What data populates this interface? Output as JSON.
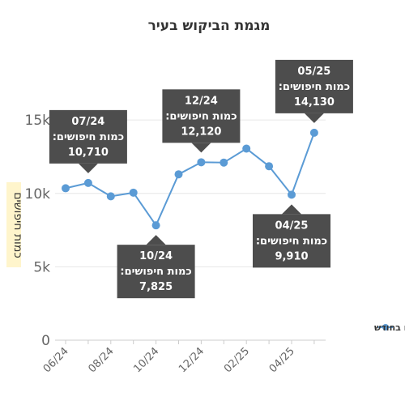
{
  "chart_data": {
    "type": "line",
    "title": "מגמת הביקוש בעיר",
    "ylabel": "כמות חיפושים",
    "xlabel": "",
    "ylim": [
      0,
      16000
    ],
    "yticks": [
      {
        "value": 0,
        "label": "0"
      },
      {
        "value": 5000,
        "label": "5k"
      },
      {
        "value": 10000,
        "label": "10k"
      },
      {
        "value": 15000,
        "label": "15k"
      }
    ],
    "xtick_labels": [
      "06/24",
      "08/24",
      "10/24",
      "12/24",
      "02/25",
      "04/25"
    ],
    "x": [
      "06/24",
      "07/24",
      "08/24",
      "09/24",
      "10/24",
      "11/24",
      "12/24",
      "01/25",
      "02/25",
      "03/25",
      "04/25",
      "05/25"
    ],
    "series": [
      {
        "name": "חיפושים בחודש",
        "color": "#5b9bd5",
        "values": [
          10350,
          10710,
          9800,
          10050,
          7825,
          11300,
          12120,
          12100,
          13050,
          11850,
          9910,
          14130
        ]
      }
    ],
    "grid": true,
    "legend_position": "right",
    "annotations": [
      {
        "index": 1,
        "date": "07/24",
        "label": "כמות חיפושים:",
        "value": "10,710",
        "placement": "above"
      },
      {
        "index": 4,
        "date": "10/24",
        "label": "כמות חיפושים:",
        "value": "7,825",
        "placement": "below"
      },
      {
        "index": 6,
        "date": "12/24",
        "label": "כמות חיפושים:",
        "value": "12,120",
        "placement": "above"
      },
      {
        "index": 10,
        "date": "04/25",
        "label": "כמות חיפושים:",
        "value": "9,910",
        "placement": "below"
      },
      {
        "index": 11,
        "date": "05/25",
        "label": "כמות חיפושים:",
        "value": "14,130",
        "placement": "above"
      }
    ]
  }
}
